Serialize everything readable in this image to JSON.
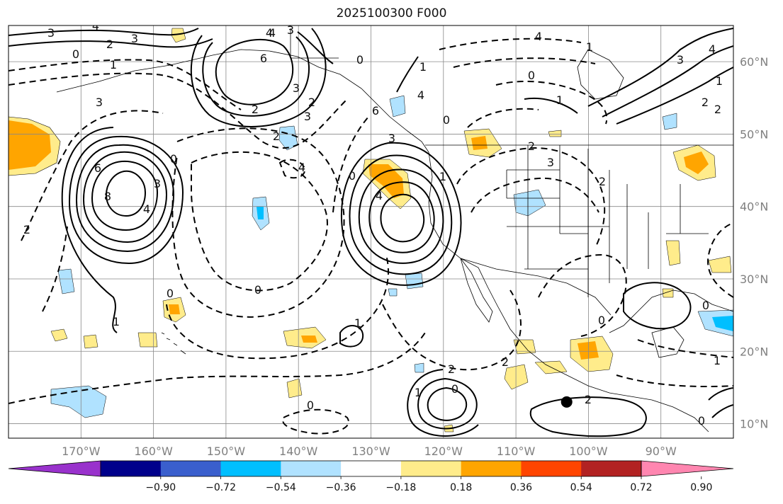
{
  "title": "2025100300 F000",
  "map": {
    "projection": "PlateCarree",
    "lon_range": [
      -180,
      -80
    ],
    "lat_range": [
      8,
      65
    ],
    "lon_ticks": [
      "170°W",
      "160°W",
      "150°W",
      "140°W",
      "130°W",
      "120°W",
      "110°W",
      "100°W",
      "90°W"
    ],
    "lat_ticks": [
      "10°N",
      "20°N",
      "30°N",
      "40°N",
      "50°N",
      "60°N"
    ],
    "grid": true,
    "contour_labels": [
      "3",
      "4",
      "2",
      "0",
      "1",
      "3",
      "4",
      "3",
      "2",
      "3",
      "2",
      "4",
      "0",
      "0",
      "1",
      "6",
      "3",
      "2",
      "1",
      "0",
      "4",
      "1",
      "2",
      "3",
      "2",
      "0",
      "4",
      "6",
      "8",
      "4",
      "3",
      "4",
      "3",
      "1",
      "2",
      "4",
      "1",
      "3",
      "2",
      "0",
      "4",
      "3",
      "2",
      "6",
      "1",
      "1",
      "2",
      "2",
      "0",
      "0",
      "0",
      "2",
      "0",
      "0",
      "0",
      "1",
      "0",
      "1"
    ],
    "marker": {
      "lon": -103,
      "lat": 13,
      "icon": "black-dot"
    }
  },
  "colorbar": {
    "colors": [
      "#9932cc",
      "#00008b",
      "#3a5fcd",
      "#00bfff",
      "#b0e2ff",
      "#ffffff",
      "#ffec8b",
      "#ffa500",
      "#ff4500",
      "#b22222",
      "#ff86b0"
    ],
    "tick_labels": [
      "−0.90",
      "−0.72",
      "−0.54",
      "−0.36",
      "−0.18",
      "0.18",
      "0.36",
      "0.54",
      "0.72",
      "0.90"
    ]
  }
}
